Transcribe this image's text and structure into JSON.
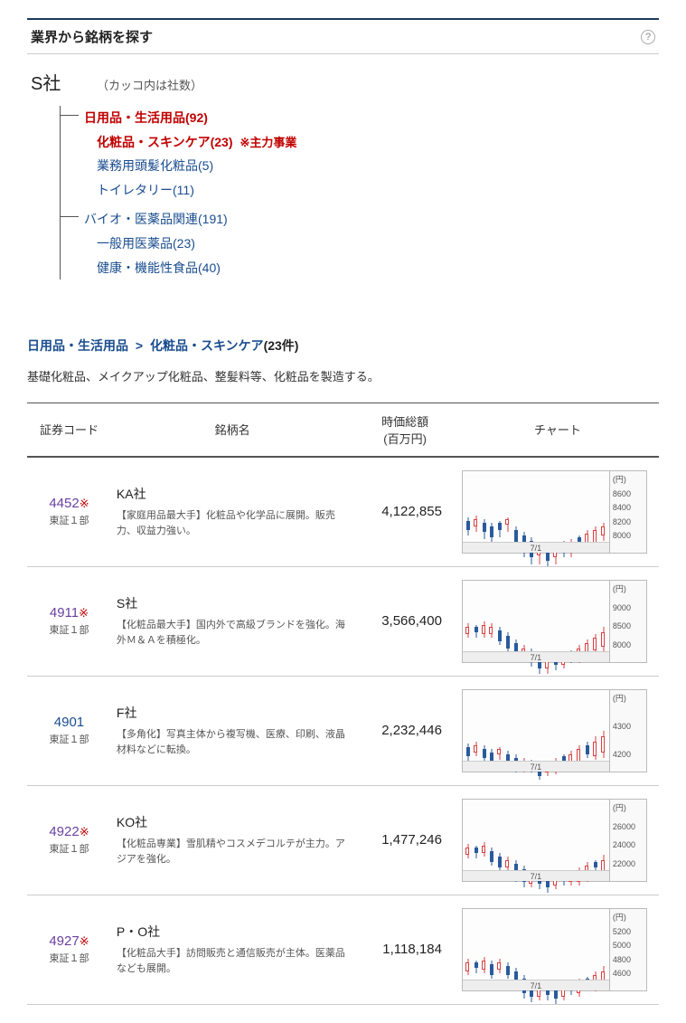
{
  "header": {
    "title": "業界から銘柄を探す"
  },
  "tree": {
    "company": "S社",
    "hint": "（カッコ内は社数）",
    "groups": [
      {
        "label": "日用品・生活用品(92)",
        "bold": true,
        "children": [
          {
            "label": "化粧品・スキンケア(23)",
            "bold": true,
            "main": "※主力事業"
          },
          {
            "label": "業務用頭髪化粧品(5)"
          },
          {
            "label": "トイレタリー(11)"
          }
        ]
      },
      {
        "label": "バイオ・医薬品関連(191)",
        "children": [
          {
            "label": "一般用医薬品(23)"
          },
          {
            "label": "健康・機能性食品(40)"
          }
        ]
      }
    ]
  },
  "breadcrumb": {
    "cat": "日用品・生活用品",
    "sub": "化粧品・スキンケア",
    "count": "(23件)"
  },
  "category_desc": "基礎化粧品、メイクアップ化粧品、整髪料等、化粧品を製造する。",
  "table": {
    "headers": {
      "code": "証券コード",
      "name": "銘柄名",
      "cap": "時価総額\n(百万円)",
      "chart": "チャート"
    },
    "rows": [
      {
        "code": "4452",
        "note": true,
        "code_color": "purple",
        "market": "東証１部",
        "name": "KA社",
        "desc": "【家庭用品最大手】化粧品や化学品に展開。販売力、収益力強い。",
        "cap": "4,122,855",
        "chart": {
          "unit": "(円)",
          "yticks": [
            "8600",
            "8400",
            "8200",
            "8000"
          ],
          "xlabel": "7/1",
          "candles": [
            {
              "d": "down",
              "wt": 10,
              "wh": 20,
              "bt": 14,
              "bh": 10
            },
            {
              "d": "up",
              "wt": 8,
              "wh": 18,
              "bt": 12,
              "bh": 8
            },
            {
              "d": "down",
              "wt": 12,
              "wh": 22,
              "bt": 16,
              "bh": 10
            },
            {
              "d": "down",
              "wt": 16,
              "wh": 24,
              "bt": 20,
              "bh": 12
            },
            {
              "d": "down",
              "wt": 14,
              "wh": 18,
              "bt": 16,
              "bh": 8
            },
            {
              "d": "up",
              "wt": 10,
              "wh": 16,
              "bt": 12,
              "bh": 6
            },
            {
              "d": "down",
              "wt": 20,
              "wh": 26,
              "bt": 24,
              "bh": 14
            },
            {
              "d": "down",
              "wt": 26,
              "wh": 28,
              "bt": 30,
              "bh": 16
            },
            {
              "d": "down",
              "wt": 32,
              "wh": 30,
              "bt": 36,
              "bh": 18
            },
            {
              "d": "up",
              "wt": 38,
              "wh": 24,
              "bt": 42,
              "bh": 10
            },
            {
              "d": "down",
              "wt": 44,
              "wh": 20,
              "bt": 46,
              "bh": 12
            },
            {
              "d": "up",
              "wt": 40,
              "wh": 22,
              "bt": 44,
              "bh": 10
            },
            {
              "d": "down",
              "wt": 36,
              "wh": 18,
              "bt": 38,
              "bh": 8
            },
            {
              "d": "up",
              "wt": 34,
              "wh": 20,
              "bt": 38,
              "bh": 10
            },
            {
              "d": "down",
              "wt": 30,
              "wh": 16,
              "bt": 32,
              "bh": 8
            },
            {
              "d": "up",
              "wt": 24,
              "wh": 22,
              "bt": 28,
              "bh": 12
            },
            {
              "d": "up",
              "wt": 20,
              "wh": 24,
              "bt": 24,
              "bh": 14
            },
            {
              "d": "up",
              "wt": 16,
              "wh": 20,
              "bt": 20,
              "bh": 10
            }
          ]
        }
      },
      {
        "code": "4911",
        "note": true,
        "code_color": "purple",
        "market": "東証１部",
        "name": "S社",
        "desc": "【化粧品最大手】国内外で高級ブランドを強化。海外Ｍ＆Ａを積極化。",
        "cap": "3,566,400",
        "chart": {
          "unit": "(円)",
          "yticks": [
            "9000",
            "8500",
            "8000"
          ],
          "xlabel": "7/1",
          "candles": [
            {
              "d": "up",
              "wt": 6,
              "wh": 16,
              "bt": 10,
              "bh": 8
            },
            {
              "d": "down",
              "wt": 8,
              "wh": 14,
              "bt": 10,
              "bh": 6
            },
            {
              "d": "up",
              "wt": 4,
              "wh": 18,
              "bt": 8,
              "bh": 10
            },
            {
              "d": "up",
              "wt": 6,
              "wh": 16,
              "bt": 10,
              "bh": 8
            },
            {
              "d": "down",
              "wt": 10,
              "wh": 20,
              "bt": 14,
              "bh": 12
            },
            {
              "d": "down",
              "wt": 16,
              "wh": 22,
              "bt": 20,
              "bh": 14
            },
            {
              "d": "down",
              "wt": 24,
              "wh": 24,
              "bt": 28,
              "bh": 14
            },
            {
              "d": "up",
              "wt": 30,
              "wh": 18,
              "bt": 34,
              "bh": 8
            },
            {
              "d": "down",
              "wt": 34,
              "wh": 20,
              "bt": 38,
              "bh": 10
            },
            {
              "d": "down",
              "wt": 40,
              "wh": 22,
              "bt": 44,
              "bh": 12
            },
            {
              "d": "up",
              "wt": 44,
              "wh": 18,
              "bt": 48,
              "bh": 8
            },
            {
              "d": "down",
              "wt": 42,
              "wh": 16,
              "bt": 44,
              "bh": 8
            },
            {
              "d": "up",
              "wt": 38,
              "wh": 18,
              "bt": 42,
              "bh": 10
            },
            {
              "d": "down",
              "wt": 36,
              "wh": 14,
              "bt": 38,
              "bh": 6
            },
            {
              "d": "up",
              "wt": 30,
              "wh": 20,
              "bt": 34,
              "bh": 12
            },
            {
              "d": "up",
              "wt": 24,
              "wh": 22,
              "bt": 28,
              "bh": 14
            },
            {
              "d": "up",
              "wt": 18,
              "wh": 24,
              "bt": 22,
              "bh": 14
            },
            {
              "d": "up",
              "wt": 10,
              "wh": 28,
              "bt": 16,
              "bh": 16
            }
          ]
        }
      },
      {
        "code": "4901",
        "note": false,
        "code_color": "blue",
        "market": "東証１部",
        "name": "F社",
        "desc": "【多角化】写真主体から複写機、医療、印刷、液晶材料などに転換。",
        "cap": "2,232,446",
        "chart": {
          "unit": "(円)",
          "yticks": [
            "4300",
            "4200"
          ],
          "xlabel": "7/1",
          "candles": [
            {
              "d": "down",
              "wt": 18,
              "wh": 20,
              "bt": 22,
              "bh": 10
            },
            {
              "d": "up",
              "wt": 16,
              "wh": 16,
              "bt": 20,
              "bh": 8
            },
            {
              "d": "down",
              "wt": 20,
              "wh": 18,
              "bt": 24,
              "bh": 10
            },
            {
              "d": "down",
              "wt": 24,
              "wh": 20,
              "bt": 28,
              "bh": 12
            },
            {
              "d": "up",
              "wt": 22,
              "wh": 14,
              "bt": 24,
              "bh": 6
            },
            {
              "d": "down",
              "wt": 26,
              "wh": 18,
              "bt": 30,
              "bh": 10
            },
            {
              "d": "down",
              "wt": 30,
              "wh": 20,
              "bt": 34,
              "bh": 12
            },
            {
              "d": "up",
              "wt": 34,
              "wh": 16,
              "bt": 38,
              "bh": 8
            },
            {
              "d": "down",
              "wt": 36,
              "wh": 14,
              "bt": 38,
              "bh": 6
            },
            {
              "d": "down",
              "wt": 40,
              "wh": 18,
              "bt": 44,
              "bh": 10
            },
            {
              "d": "up",
              "wt": 38,
              "wh": 16,
              "bt": 42,
              "bh": 8
            },
            {
              "d": "up",
              "wt": 34,
              "wh": 18,
              "bt": 38,
              "bh": 10
            },
            {
              "d": "down",
              "wt": 30,
              "wh": 14,
              "bt": 32,
              "bh": 6
            },
            {
              "d": "up",
              "wt": 26,
              "wh": 20,
              "bt": 30,
              "bh": 12
            },
            {
              "d": "up",
              "wt": 20,
              "wh": 22,
              "bt": 24,
              "bh": 14
            },
            {
              "d": "down",
              "wt": 16,
              "wh": 18,
              "bt": 20,
              "bh": 10
            },
            {
              "d": "up",
              "wt": 10,
              "wh": 26,
              "bt": 16,
              "bh": 16
            },
            {
              "d": "up",
              "wt": 4,
              "wh": 30,
              "bt": 10,
              "bh": 18
            }
          ]
        }
      },
      {
        "code": "4922",
        "note": true,
        "code_color": "purple",
        "market": "東証１部",
        "name": "KO社",
        "desc": "【化粧品専業】雪肌精やコスメデコルテが主力。アジアを強化。",
        "cap": "1,477,246",
        "chart": {
          "unit": "(円)",
          "yticks": [
            "26000",
            "24000",
            "22000"
          ],
          "xlabel": "7/1",
          "candles": [
            {
              "d": "up",
              "wt": 8,
              "wh": 16,
              "bt": 12,
              "bh": 8
            },
            {
              "d": "down",
              "wt": 10,
              "wh": 14,
              "bt": 12,
              "bh": 6
            },
            {
              "d": "up",
              "wt": 6,
              "wh": 16,
              "bt": 10,
              "bh": 8
            },
            {
              "d": "down",
              "wt": 12,
              "wh": 20,
              "bt": 16,
              "bh": 12
            },
            {
              "d": "down",
              "wt": 18,
              "wh": 22,
              "bt": 22,
              "bh": 12
            },
            {
              "d": "up",
              "wt": 22,
              "wh": 16,
              "bt": 26,
              "bh": 8
            },
            {
              "d": "down",
              "wt": 26,
              "wh": 24,
              "bt": 30,
              "bh": 14
            },
            {
              "d": "down",
              "wt": 32,
              "wh": 24,
              "bt": 36,
              "bh": 14
            },
            {
              "d": "up",
              "wt": 38,
              "wh": 18,
              "bt": 42,
              "bh": 10
            },
            {
              "d": "down",
              "wt": 42,
              "wh": 16,
              "bt": 44,
              "bh": 8
            },
            {
              "d": "down",
              "wt": 44,
              "wh": 18,
              "bt": 46,
              "bh": 10
            },
            {
              "d": "up",
              "wt": 42,
              "wh": 16,
              "bt": 46,
              "bh": 8
            },
            {
              "d": "down",
              "wt": 40,
              "wh": 14,
              "bt": 42,
              "bh": 6
            },
            {
              "d": "up",
              "wt": 38,
              "wh": 16,
              "bt": 42,
              "bh": 8
            },
            {
              "d": "up",
              "wt": 34,
              "wh": 20,
              "bt": 38,
              "bh": 12
            },
            {
              "d": "up",
              "wt": 28,
              "wh": 22,
              "bt": 32,
              "bh": 14
            },
            {
              "d": "down",
              "wt": 26,
              "wh": 14,
              "bt": 28,
              "bh": 6
            },
            {
              "d": "up",
              "wt": 20,
              "wh": 24,
              "bt": 26,
              "bh": 14
            }
          ]
        }
      },
      {
        "code": "4927",
        "note": true,
        "code_color": "purple",
        "market": "東証１部",
        "name": "P・O社",
        "desc": "【化粧品大手】訪問販売と通信販売が主体。医薬品なども展開。",
        "cap": "1,118,184",
        "chart": {
          "unit": "(円)",
          "yticks": [
            "5200",
            "5000",
            "4800",
            "4600"
          ],
          "xlabel": "7/1",
          "candles": [
            {
              "d": "up",
              "wt": 14,
              "wh": 18,
              "bt": 18,
              "bh": 10
            },
            {
              "d": "down",
              "wt": 16,
              "wh": 14,
              "bt": 18,
              "bh": 6
            },
            {
              "d": "up",
              "wt": 12,
              "wh": 18,
              "bt": 16,
              "bh": 10
            },
            {
              "d": "down",
              "wt": 16,
              "wh": 20,
              "bt": 20,
              "bh": 12
            },
            {
              "d": "up",
              "wt": 14,
              "wh": 16,
              "bt": 18,
              "bh": 8
            },
            {
              "d": "down",
              "wt": 18,
              "wh": 18,
              "bt": 22,
              "bh": 10
            },
            {
              "d": "down",
              "wt": 24,
              "wh": 24,
              "bt": 28,
              "bh": 16
            },
            {
              "d": "down",
              "wt": 32,
              "wh": 26,
              "bt": 36,
              "bh": 16
            },
            {
              "d": "down",
              "wt": 40,
              "wh": 22,
              "bt": 44,
              "bh": 12
            },
            {
              "d": "up",
              "wt": 42,
              "wh": 18,
              "bt": 46,
              "bh": 10
            },
            {
              "d": "down",
              "wt": 44,
              "wh": 16,
              "bt": 46,
              "bh": 8
            },
            {
              "d": "down",
              "wt": 46,
              "wh": 18,
              "bt": 48,
              "bh": 10
            },
            {
              "d": "up",
              "wt": 42,
              "wh": 18,
              "bt": 46,
              "bh": 10
            },
            {
              "d": "down",
              "wt": 40,
              "wh": 14,
              "bt": 42,
              "bh": 6
            },
            {
              "d": "up",
              "wt": 36,
              "wh": 20,
              "bt": 40,
              "bh": 12
            },
            {
              "d": "down",
              "wt": 34,
              "wh": 14,
              "bt": 36,
              "bh": 6
            },
            {
              "d": "up",
              "wt": 28,
              "wh": 22,
              "bt": 32,
              "bh": 14
            },
            {
              "d": "up",
              "wt": 22,
              "wh": 24,
              "bt": 28,
              "bh": 14
            }
          ]
        }
      }
    ]
  }
}
